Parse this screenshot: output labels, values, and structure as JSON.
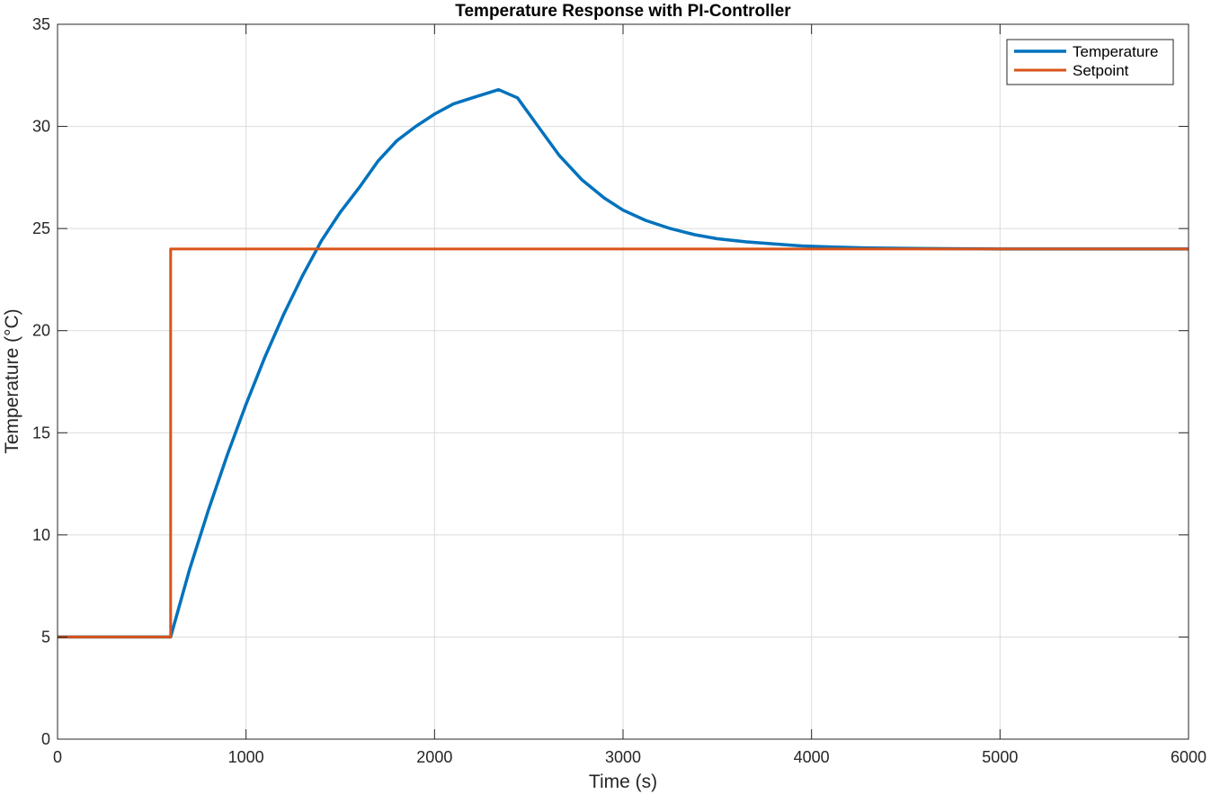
{
  "chart_data": {
    "type": "line",
    "title": "Temperature Response with PI-Controller",
    "xlabel": "Time (s)",
    "ylabel": "Temperature (°C)",
    "xlim": [
      0,
      6000
    ],
    "ylim": [
      0,
      35
    ],
    "xticks": [
      0,
      1000,
      2000,
      3000,
      4000,
      5000,
      6000
    ],
    "yticks": [
      0,
      5,
      10,
      15,
      20,
      25,
      30,
      35
    ],
    "grid": true,
    "legend_position": "top-right",
    "series": [
      {
        "name": "Temperature",
        "color": "#0072BD",
        "x": [
          0,
          600,
          700,
          800,
          900,
          1000,
          1100,
          1200,
          1300,
          1400,
          1500,
          1600,
          1700,
          1800,
          1900,
          2000,
          2100,
          2200,
          2340,
          2440,
          2550,
          2660,
          2780,
          2900,
          3000,
          3120,
          3250,
          3380,
          3500,
          3650,
          3800,
          3950,
          4100,
          4300,
          4600,
          5000,
          5500,
          6000
        ],
        "y": [
          5,
          5,
          8.3,
          11.2,
          13.9,
          16.4,
          18.7,
          20.8,
          22.7,
          24.4,
          25.8,
          27.0,
          28.3,
          29.3,
          30.0,
          30.6,
          31.1,
          31.4,
          31.8,
          31.4,
          30.0,
          28.6,
          27.4,
          26.5,
          25.9,
          25.4,
          25.0,
          24.7,
          24.5,
          24.35,
          24.25,
          24.15,
          24.1,
          24.05,
          24.02,
          24.0,
          24.0,
          24.0
        ]
      },
      {
        "name": "Setpoint",
        "color": "#D95319",
        "x": [
          0,
          600,
          600,
          6000
        ],
        "y": [
          5,
          5,
          24,
          24
        ]
      }
    ]
  }
}
